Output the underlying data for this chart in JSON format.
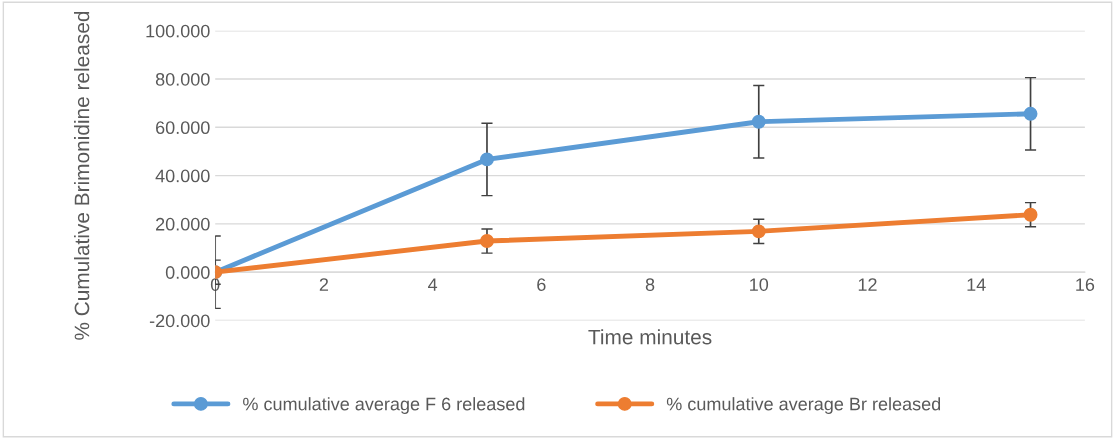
{
  "chart_data": {
    "type": "line",
    "xlabel": "Time minutes",
    "ylabel": "% Cumulative Brimonidine released",
    "x": [
      0,
      5,
      10,
      15
    ],
    "series": [
      {
        "name": "% cumulative average F 6 released",
        "color": "#5b9bd5",
        "values": [
          0,
          46.7,
          62.3,
          65.6
        ],
        "errors": [
          15,
          15,
          15,
          15
        ]
      },
      {
        "name": "% cumulative average Br released",
        "color": "#ed7d31",
        "values": [
          0,
          12.9,
          16.9,
          23.8
        ],
        "errors": [
          5,
          5,
          5,
          5
        ]
      }
    ],
    "xlim": [
      0,
      16
    ],
    "xticks": [
      0,
      2,
      4,
      6,
      8,
      10,
      12,
      14,
      16
    ],
    "ylim": [
      -20,
      100
    ],
    "yticks": [
      {
        "value": -20,
        "label": "-20.000"
      },
      {
        "value": 0,
        "label": "0.000"
      },
      {
        "value": 20,
        "label": "20.000"
      },
      {
        "value": 40,
        "label": "40.000"
      },
      {
        "value": 60,
        "label": "60.000"
      },
      {
        "value": 80,
        "label": "80.000"
      },
      {
        "value": 100,
        "label": "100.000"
      }
    ],
    "grid": "y",
    "legend": "bottom",
    "marker": "circle",
    "line_style": "solid"
  }
}
